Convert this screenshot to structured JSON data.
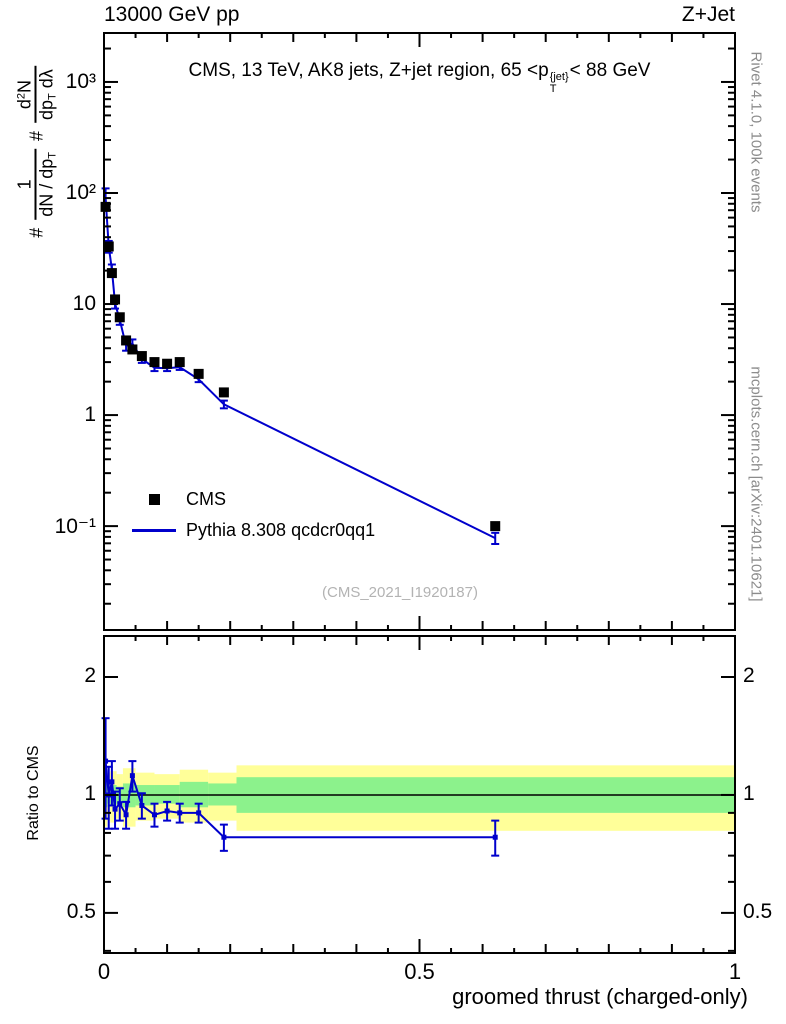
{
  "labels": {
    "header_left": "13000 GeV pp",
    "header_right": "Z+Jet",
    "rivet_note": "Rivet 4.1.0, 100k events",
    "mcplots_note": "mcplots.cern.ch [arXiv:2401.10621]",
    "watermark": "(CMS_2021_I1920187)",
    "ratio_ylabel": "Ratio to CMS",
    "x_title": "groomed thrust (charged-only)",
    "title": {
      "pre": "CMS, 13 TeV, AK8 jets, Z+jet region, 65 <p",
      "sup": "{jet}",
      "sub": "T",
      "post": "< 88 GeV"
    },
    "y_label": {
      "hash1": "#",
      "f1_num": "1",
      "f1_den_main": "dN / dp",
      "f1_den_sub": "T",
      "hash2": "#",
      "f2_num_base": "d",
      "f2_num_sup": "2",
      "f2_num_tail": "N",
      "f2_den_main": "dp",
      "f2_den_sub": "T",
      "f2_den_tail": " dλ"
    },
    "legend": [
      {
        "label": "CMS",
        "marker": "black-square"
      },
      {
        "label": "Pythia 8.308 qcdcr0qq1",
        "marker": "blue-line"
      }
    ]
  },
  "colors": {
    "cms": "#000000",
    "pythia": "#0000cc",
    "band_yellow": "#ffff99",
    "band_green": "#8cf28c",
    "note_gray": "#8c8c8c",
    "watermark_gray": "#b3b3b3"
  },
  "chart_data": {
    "type": "line",
    "title": "CMS, 13 TeV, AK8 jets, Z+jet region, 65 < pT{jet} < 88 GeV",
    "xlabel": "groomed thrust (charged-only)",
    "ylabel": "# 1/(dN/dpT) # d2N/(dpT dλ)",
    "xlim": [
      0,
      1
    ],
    "xticks": [
      {
        "v": 0,
        "label": "0"
      },
      {
        "v": 0.5,
        "label": "0.5"
      },
      {
        "v": 1,
        "label": "1"
      }
    ],
    "main": {
      "yscale": "log",
      "ylim": [
        0.0116,
        2760
      ],
      "yticks": [
        {
          "v": 1000,
          "label": "10³"
        },
        {
          "v": 100,
          "label": "10²"
        },
        {
          "v": 10,
          "label": "10"
        },
        {
          "v": 1,
          "label": "1"
        },
        {
          "v": 0.1,
          "label": "10⁻¹"
        }
      ],
      "series": [
        {
          "name": "CMS",
          "type": "points",
          "marker": "square",
          "x": [
            0.0025,
            0.0075,
            0.0125,
            0.0175,
            0.025,
            0.035,
            0.045,
            0.06,
            0.08,
            0.1,
            0.12,
            0.15,
            0.19,
            0.62
          ],
          "y": [
            75,
            33,
            19,
            11,
            7.6,
            4.7,
            3.9,
            3.4,
            3.0,
            2.9,
            3.0,
            2.35,
            1.6,
            0.1
          ]
        },
        {
          "name": "Pythia 8.308 qcdcr0qq1",
          "type": "line",
          "x": [
            0.0025,
            0.0075,
            0.0125,
            0.0175,
            0.025,
            0.035,
            0.045,
            0.06,
            0.08,
            0.1,
            0.12,
            0.15,
            0.19,
            0.62
          ],
          "y": [
            90,
            33,
            20.5,
            10.1,
            7.2,
            4.2,
            4.4,
            3.2,
            2.67,
            2.64,
            2.7,
            2.1,
            1.25,
            0.078
          ],
          "yerr": [
            20,
            4,
            2.2,
            1.0,
            0.7,
            0.4,
            0.4,
            0.25,
            0.18,
            0.15,
            0.15,
            0.12,
            0.1,
            0.009
          ]
        }
      ]
    },
    "ratio": {
      "yscale": "log",
      "ylim": [
        0.395,
        2.545
      ],
      "yticks": [
        {
          "v": 0.5,
          "label": "0.5"
        },
        {
          "v": 1,
          "label": "1"
        },
        {
          "v": 2,
          "label": "2"
        }
      ],
      "unity": 1,
      "bands": {
        "yellow": [
          [
            0,
            0.005,
            0.83,
            1.17
          ],
          [
            0.005,
            0.01,
            0.86,
            1.14
          ],
          [
            0.01,
            0.02,
            0.85,
            1.15
          ],
          [
            0.02,
            0.03,
            0.87,
            1.13
          ],
          [
            0.03,
            0.05,
            0.83,
            1.17
          ],
          [
            0.05,
            0.08,
            0.86,
            1.14
          ],
          [
            0.08,
            0.12,
            0.87,
            1.13
          ],
          [
            0.12,
            0.165,
            0.85,
            1.16
          ],
          [
            0.165,
            0.21,
            0.86,
            1.14
          ],
          [
            0.21,
            1.0,
            0.81,
            1.19
          ]
        ],
        "green": [
          [
            0,
            0.005,
            0.93,
            1.07
          ],
          [
            0.005,
            0.01,
            0.95,
            1.05
          ],
          [
            0.01,
            0.02,
            0.94,
            1.06
          ],
          [
            0.02,
            0.03,
            0.95,
            1.05
          ],
          [
            0.03,
            0.05,
            0.93,
            1.07
          ],
          [
            0.05,
            0.08,
            0.94,
            1.06
          ],
          [
            0.08,
            0.12,
            0.95,
            1.06
          ],
          [
            0.12,
            0.165,
            0.93,
            1.08
          ],
          [
            0.165,
            0.21,
            0.94,
            1.07
          ],
          [
            0.21,
            1.0,
            0.9,
            1.11
          ]
        ]
      },
      "points": {
        "x": [
          0.0025,
          0.0075,
          0.0125,
          0.0175,
          0.025,
          0.035,
          0.045,
          0.06,
          0.08,
          0.1,
          0.12,
          0.15,
          0.19,
          0.62
        ],
        "y": [
          1.22,
          1.0,
          1.08,
          0.92,
          0.95,
          0.89,
          1.12,
          0.94,
          0.89,
          0.91,
          0.9,
          0.9,
          0.78,
          0.78
        ],
        "yerr": [
          0.35,
          0.18,
          0.14,
          0.1,
          0.09,
          0.07,
          0.1,
          0.07,
          0.06,
          0.05,
          0.05,
          0.05,
          0.06,
          0.08
        ]
      }
    }
  }
}
